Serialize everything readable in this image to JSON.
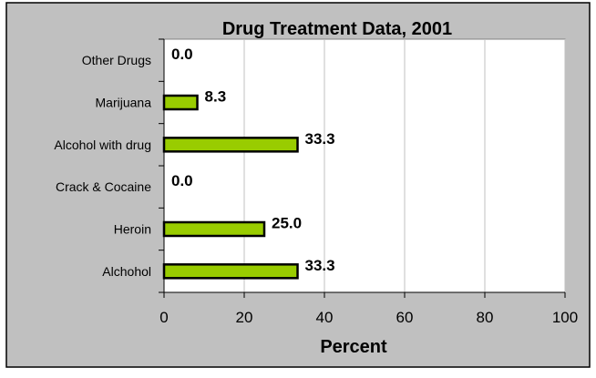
{
  "chart_data": {
    "type": "bar",
    "orientation": "horizontal",
    "title": "Drug Treatment Data, 2001",
    "xlabel": "Percent",
    "ylabel": "",
    "xlim": [
      0,
      100
    ],
    "x_ticks": [
      "0",
      "20",
      "40",
      "60",
      "80",
      "100"
    ],
    "categories": [
      "Other Drugs",
      "Marijuana",
      "Alcohol with drug",
      "Crack & Cocaine",
      "Heroin",
      "Alchohol"
    ],
    "values": [
      0.0,
      8.3,
      33.3,
      0.0,
      25.0,
      33.3
    ],
    "value_labels": [
      "0.0",
      "8.3",
      "33.3",
      "0.0",
      "25.0",
      "33.3"
    ],
    "grid": true,
    "legend": "none",
    "colors": {
      "bar_fill": "#99cc00",
      "bar_stroke": "#000000",
      "background": "#c0c0c0",
      "plot_background": "#ffffff",
      "gridline": "#c0c0c0"
    }
  }
}
